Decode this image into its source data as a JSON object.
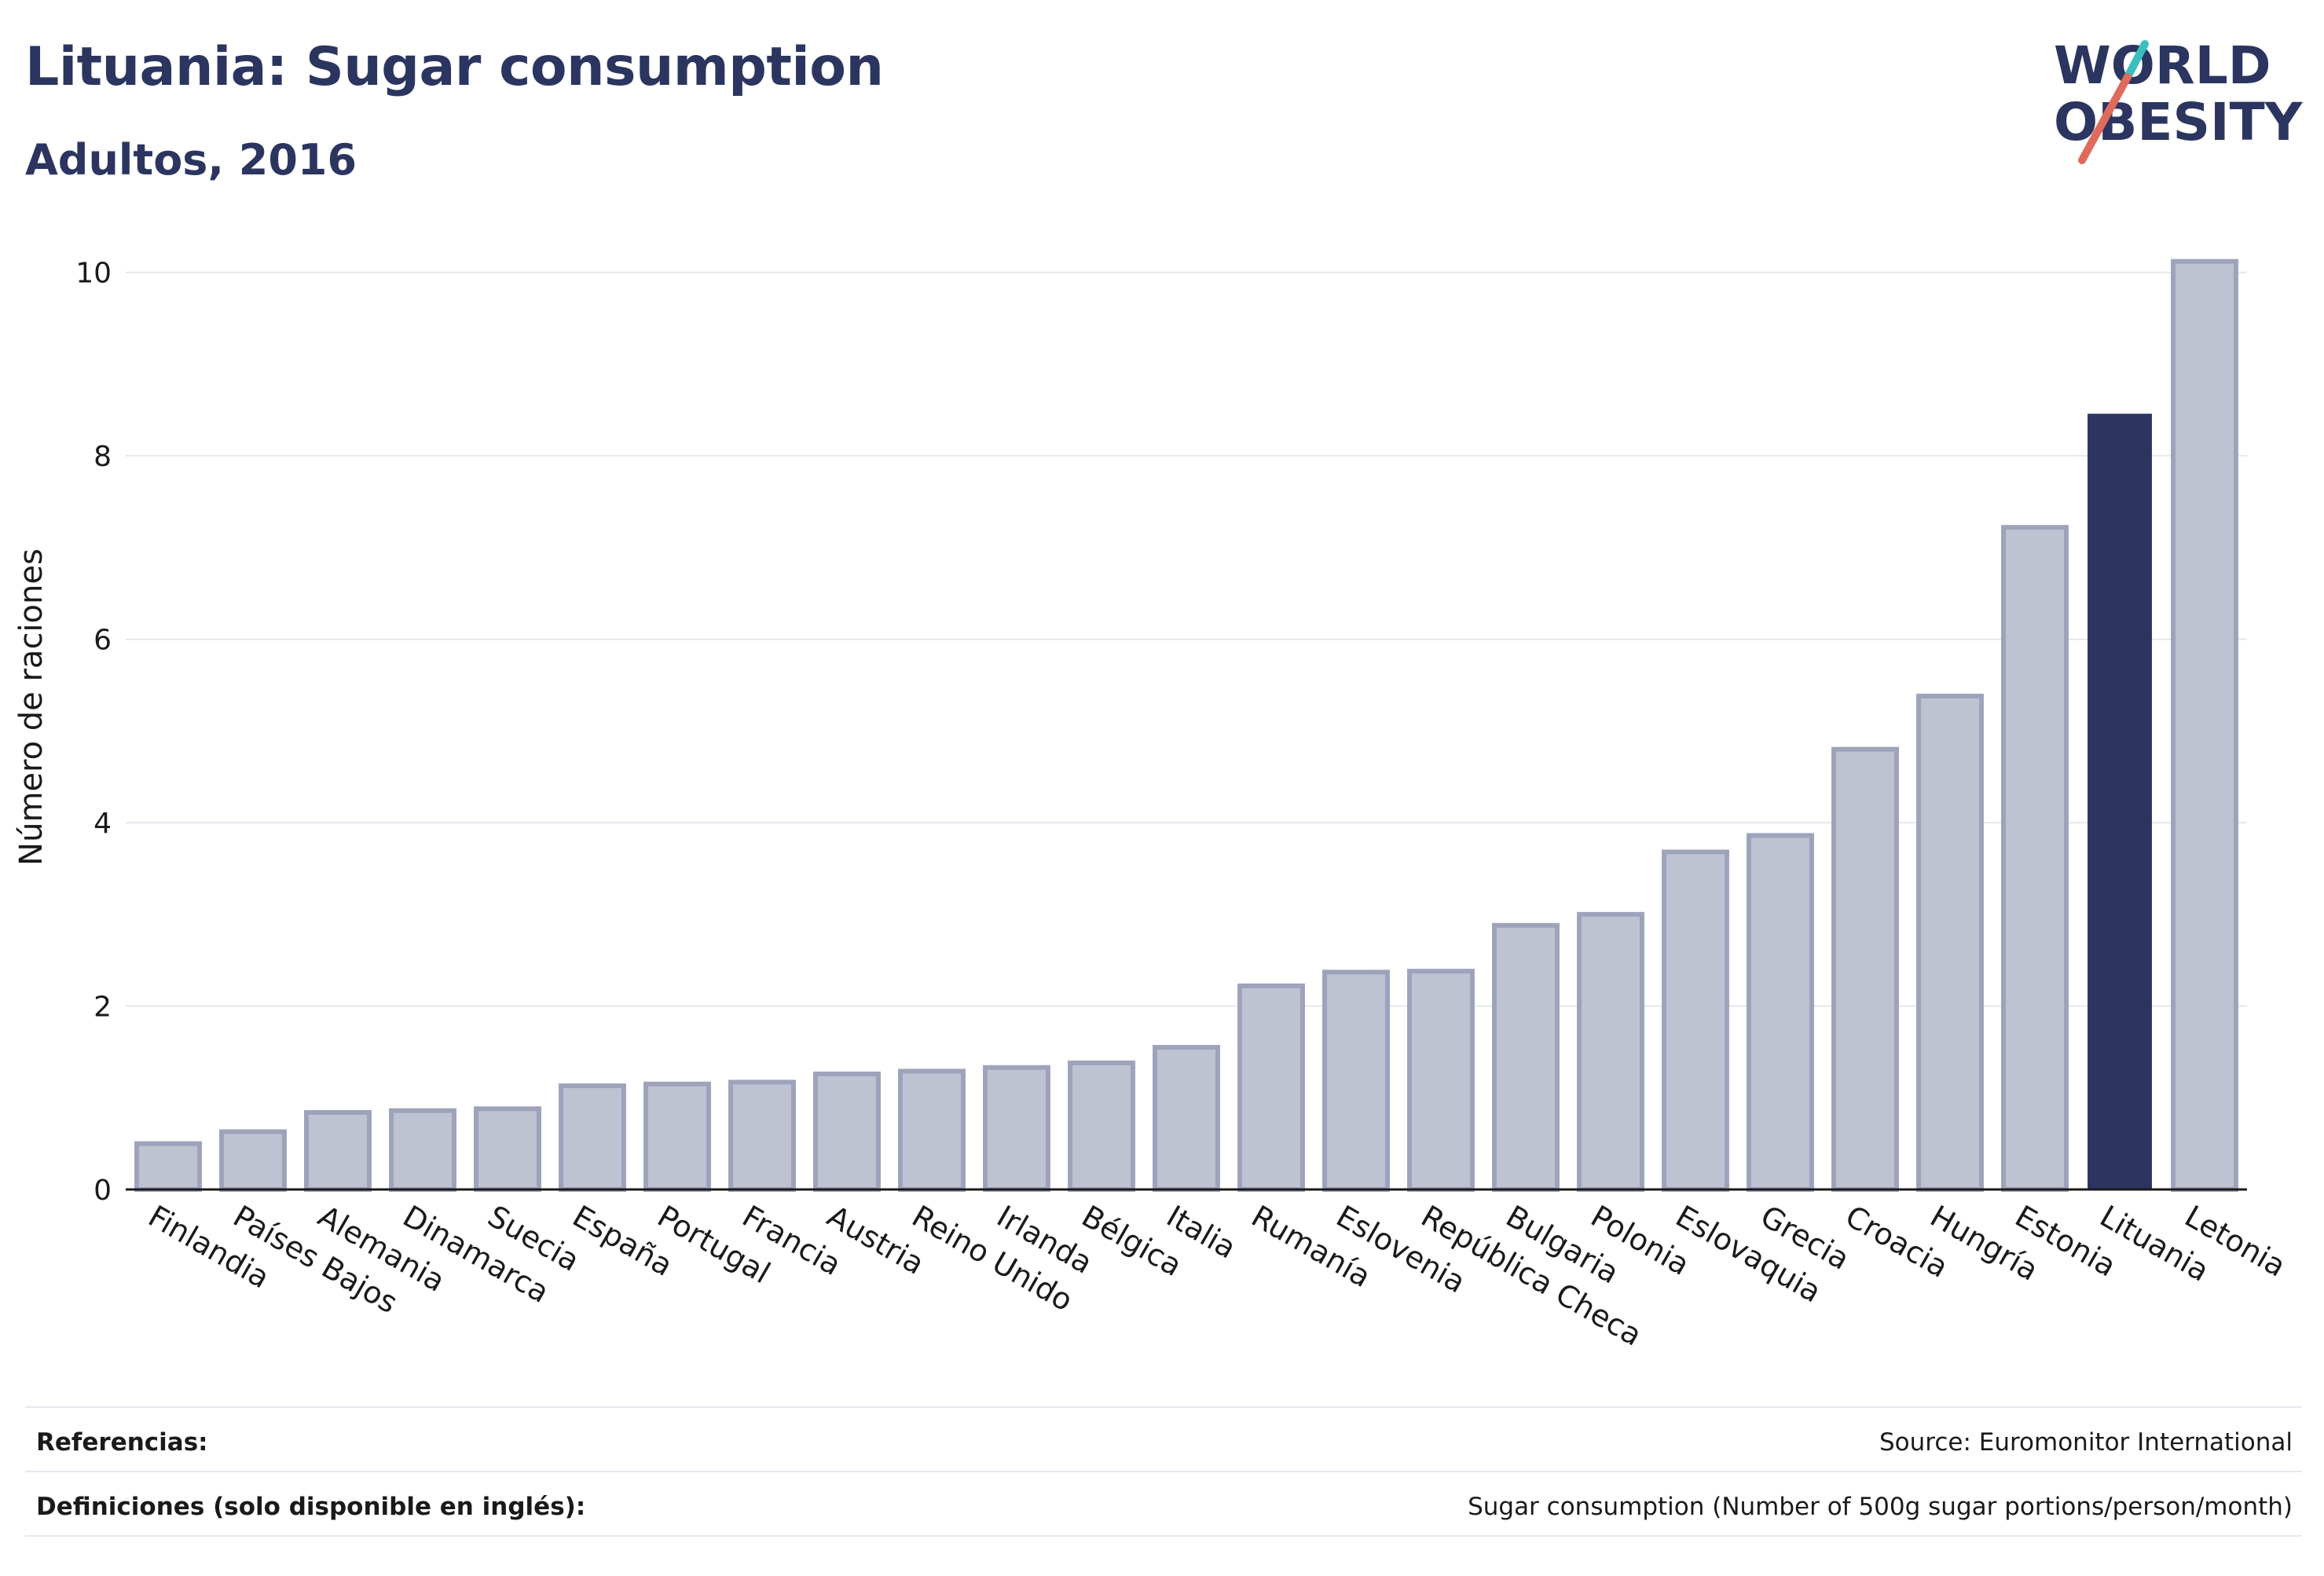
{
  "header": {
    "title": "Lituania: Sugar consumption",
    "subtitle": "Adultos, 2016"
  },
  "logo": {
    "line1": "WORLD",
    "line2": "OBESITY",
    "accent_colors": [
      "#3bbfbf",
      "#e06a5c"
    ],
    "text_color": "#2b3560"
  },
  "chart_data": {
    "type": "bar",
    "title": "Lituania: Sugar consumption",
    "subtitle": "Adultos, 2016",
    "xlabel": "",
    "ylabel": "Número de raciones",
    "ylim": [
      0,
      10.4
    ],
    "yticks": [
      0,
      2,
      4,
      6,
      8,
      10
    ],
    "grid": true,
    "highlight": "Lituania",
    "colors": {
      "default": "#bfc3d1",
      "default_border": "#9ea3bc",
      "highlight": "#2b3560"
    },
    "categories": [
      "Finlandia",
      "Países Bajos",
      "Alemania",
      "Dinamarca",
      "Suecia",
      "España",
      "Portugal",
      "Francia",
      "Austria",
      "Reino Unido",
      "Irlanda",
      "Bélgica",
      "Italia",
      "Rumanía",
      "Eslovenia",
      "República Checa",
      "Bulgaria",
      "Polonia",
      "Eslovaquia",
      "Grecia",
      "Croacia",
      "Hungría",
      "Estonia",
      "Lituania",
      "Letonia"
    ],
    "values": [
      0.5,
      0.63,
      0.84,
      0.86,
      0.88,
      1.13,
      1.15,
      1.17,
      1.26,
      1.29,
      1.33,
      1.38,
      1.55,
      2.22,
      2.37,
      2.38,
      2.88,
      3.0,
      3.68,
      3.86,
      4.8,
      5.38,
      7.22,
      8.45,
      10.12
    ]
  },
  "footer": {
    "references_label": "Referencias:",
    "references_value": "Source: Euromonitor International",
    "definitions_label": "Definiciones (solo disponible en inglés):",
    "definitions_value": "Sugar consumption (Number of 500g sugar portions/person/month)"
  }
}
